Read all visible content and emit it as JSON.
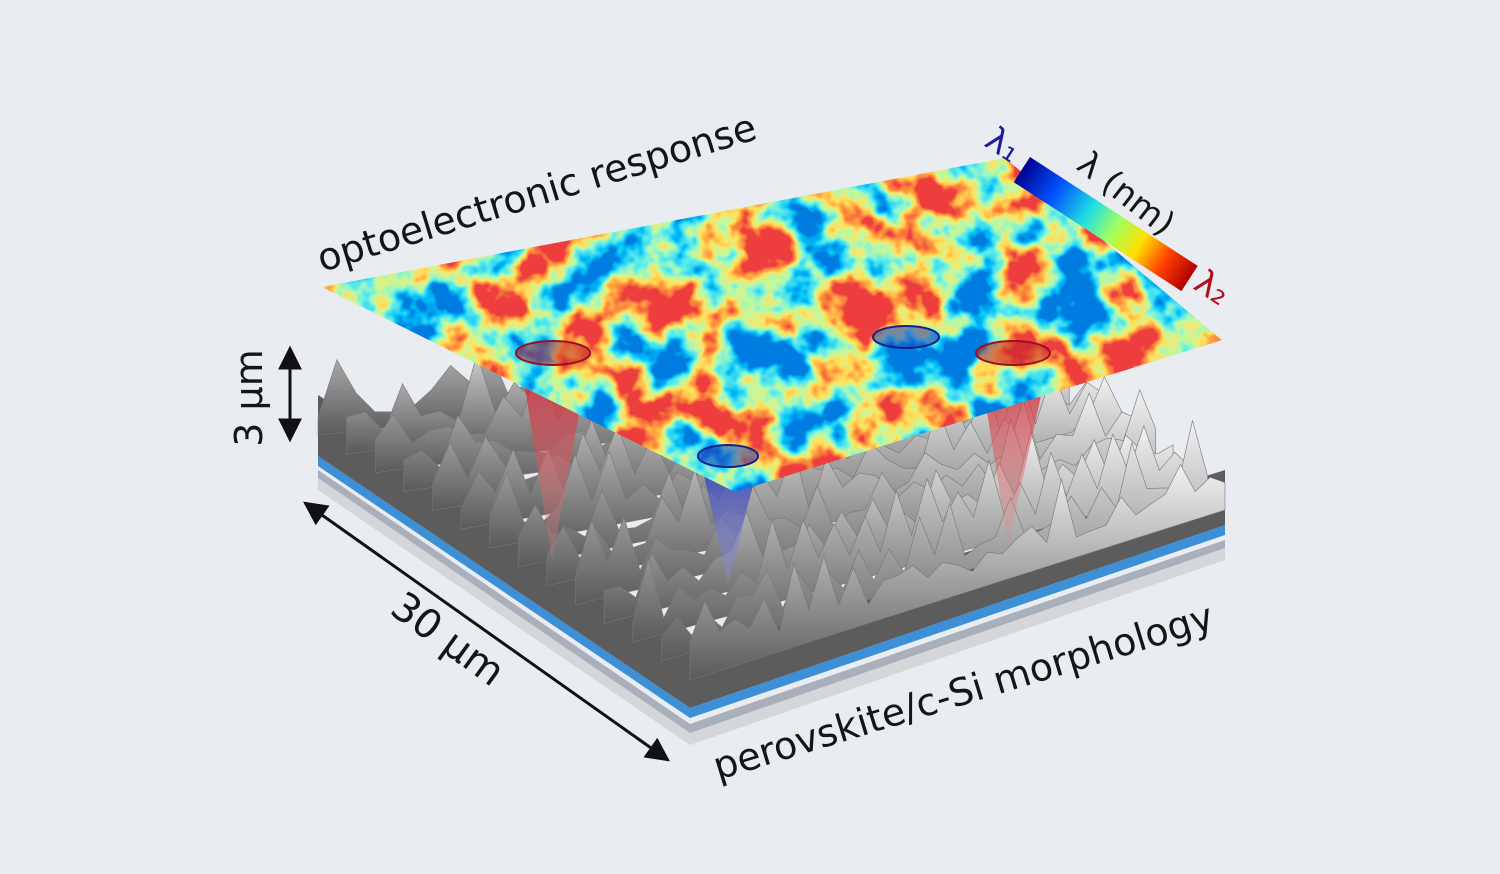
{
  "labels": {
    "plane": "optoelectronic response",
    "colorbar_title": "λ (nm)",
    "colorbar_min": "λ₁",
    "colorbar_max": "λ₂",
    "height_scale": "3 µm",
    "width_scale": "30 µm",
    "substrate": "perovskite/c-Si morphology"
  }
}
